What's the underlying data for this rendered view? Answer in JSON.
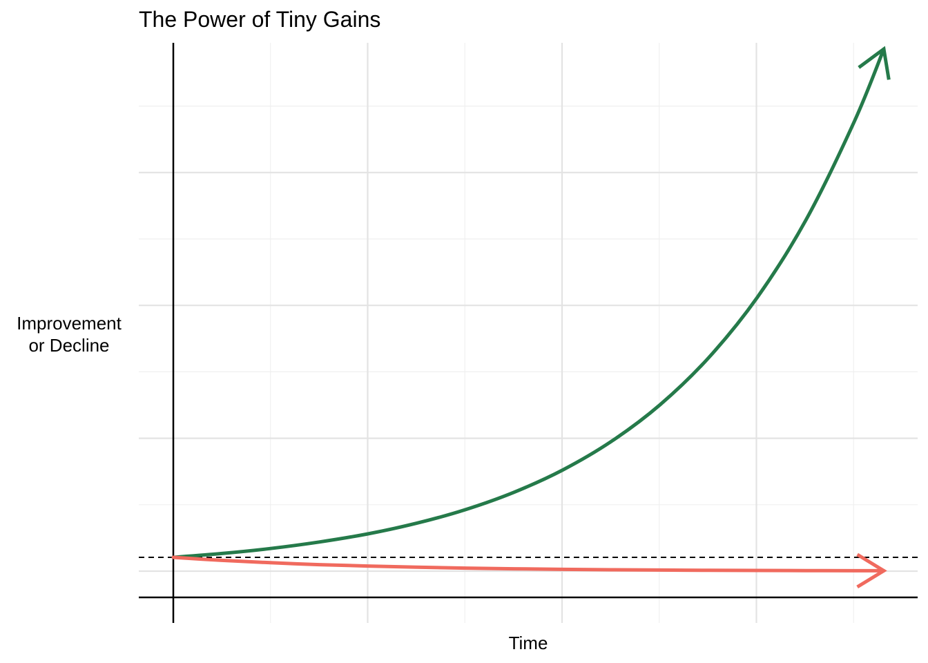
{
  "chart_data": {
    "type": "line",
    "title": "The Power of Tiny Gains",
    "xlabel": "Time",
    "ylabel_lines": [
      "Improvement",
      "or Decline"
    ],
    "xlim": [
      0,
      365
    ],
    "ylim": [
      -0.3,
      41
    ],
    "baseline": 1,
    "grid": true,
    "legend": "none",
    "series": [
      {
        "key": "gain",
        "color": "#257A4A",
        "x": [
          0,
          25,
          50,
          75,
          100,
          125,
          150,
          175,
          200,
          225,
          250,
          275,
          300,
          325,
          350,
          365
        ],
        "y": [
          1.0,
          1.28,
          1.64,
          2.11,
          2.7,
          3.47,
          4.45,
          5.71,
          7.32,
          9.39,
          12.04,
          15.45,
          19.82,
          25.42,
          32.6,
          37.8
        ]
      },
      {
        "key": "decline",
        "color": "#F06A5E",
        "x": [
          0,
          25,
          50,
          75,
          100,
          125,
          150,
          175,
          200,
          225,
          250,
          275,
          300,
          325,
          350,
          365
        ],
        "y": [
          1.0,
          0.78,
          0.61,
          0.47,
          0.37,
          0.29,
          0.22,
          0.17,
          0.13,
          0.1,
          0.08,
          0.06,
          0.05,
          0.04,
          0.03,
          0.03
        ]
      }
    ]
  }
}
